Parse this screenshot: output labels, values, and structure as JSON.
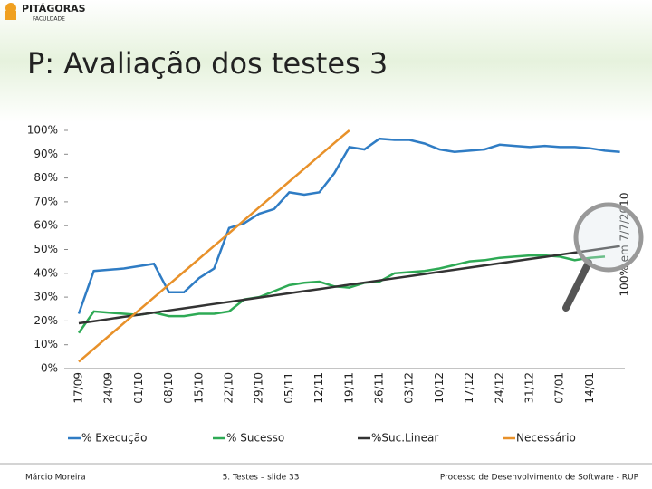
{
  "logo": {
    "name": "PITÁGORAS",
    "sub": "FACULDADE"
  },
  "slide_title": "P: Avaliação dos testes 3",
  "chart_data": {
    "type": "line",
    "annotation": "100% em 7/7/2010",
    "categories": [
      "17/09",
      null,
      "24/09",
      null,
      "01/10",
      null,
      "08/10",
      null,
      "15/10",
      null,
      "22/10",
      null,
      "29/10",
      null,
      "05/11",
      null,
      "12/11",
      null,
      "19/11",
      null,
      "26/11",
      null,
      "03/12",
      null,
      "10/12",
      null,
      "17/12",
      null,
      "24/12",
      null,
      "31/12",
      null,
      "07/01",
      null,
      "14/01",
      null,
      null
    ],
    "series": [
      {
        "name": "% Execução",
        "color": "#2f7cc4",
        "values": [
          23,
          41,
          41.5,
          42,
          43,
          44,
          32,
          32,
          38,
          42,
          59,
          61,
          65,
          67,
          74,
          73,
          74,
          82,
          93,
          92,
          96.5,
          96,
          96,
          94.5,
          92,
          91,
          91.5,
          92,
          94,
          93.5,
          93,
          93.5,
          93,
          93,
          92.5,
          91.5,
          91
        ]
      },
      {
        "name": "% Sucesso",
        "color": "#2eaa55",
        "values": [
          15,
          24,
          23.5,
          23,
          22.5,
          23.5,
          22,
          22,
          23,
          23,
          24,
          29,
          30,
          32.5,
          35,
          36,
          36.5,
          34.5,
          34,
          36,
          36.5,
          40,
          40.5,
          41,
          42,
          43.5,
          45,
          45.5,
          46.5,
          47,
          47.5,
          47.5,
          47,
          45.5,
          46.5,
          47,
          null
        ]
      },
      {
        "name": "%Suc.Linear",
        "color": "#333333",
        "values": [
          19,
          19.9,
          20.8,
          21.7,
          22.6,
          23.5,
          24.4,
          25.3,
          26.2,
          27.1,
          28,
          28.9,
          29.8,
          30.7,
          31.6,
          32.5,
          33.4,
          34.3,
          35.2,
          36.1,
          37,
          37.9,
          38.8,
          39.7,
          40.6,
          41.5,
          42.4,
          43.3,
          44.2,
          45.1,
          46,
          46.9,
          47.8,
          48.7,
          49.6,
          50.5,
          51.4
        ]
      },
      {
        "name": "Necessário",
        "color": "#e8912a",
        "values": [
          2.9,
          8.3,
          13.7,
          19.1,
          24.5,
          29.9,
          35.3,
          40.7,
          46.1,
          51.5,
          56.9,
          62.3,
          67.7,
          73.1,
          78.5,
          83.9,
          89.3,
          94.7,
          100,
          null,
          null,
          null,
          null,
          null,
          null,
          null,
          null,
          null,
          null,
          null,
          null,
          null,
          null,
          null,
          null,
          null,
          null
        ]
      }
    ],
    "ylim": [
      0,
      100
    ],
    "yticks": [
      {
        "value": 0,
        "label": "0%"
      },
      {
        "value": 10,
        "label": "10%"
      },
      {
        "value": 20,
        "label": "20%"
      },
      {
        "value": 30,
        "label": "30%"
      },
      {
        "value": 40,
        "label": "40%"
      },
      {
        "value": 50,
        "label": "50%"
      },
      {
        "value": 60,
        "label": "60%"
      },
      {
        "value": 70,
        "label": "70%"
      },
      {
        "value": 80,
        "label": "80%"
      },
      {
        "value": 90,
        "label": "90%"
      },
      {
        "value": 100,
        "label": "100%"
      }
    ],
    "legend": "bottom"
  },
  "footer": {
    "left": "Márcio Moreira",
    "center": "5. Testes – slide 33",
    "right": "Processo de Desenvolvimento de Software - RUP"
  }
}
